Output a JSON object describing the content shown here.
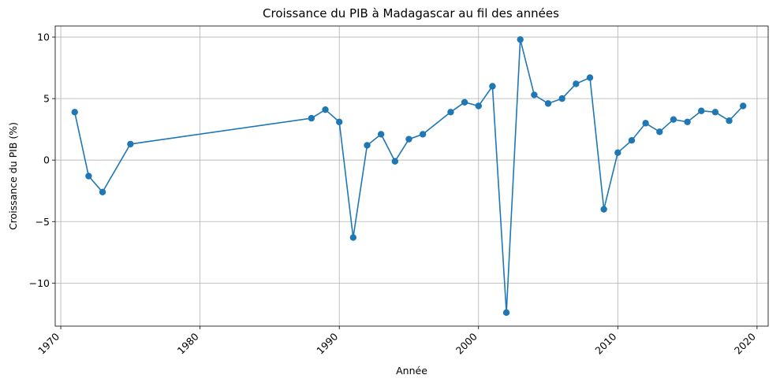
{
  "chart_data": {
    "type": "line",
    "title": "Croissance du PIB à Madagascar au fil des années",
    "xlabel": "Année",
    "ylabel": "Croissance du PIB (%)",
    "xlim": [
      1969.6,
      2020.8
    ],
    "ylim": [
      -13.5,
      10.9
    ],
    "xticks": [
      1970,
      1980,
      1990,
      2000,
      2010,
      2020
    ],
    "yticks": [
      -10,
      -5,
      0,
      5,
      10
    ],
    "xtick_labels": [
      "1970",
      "1980",
      "1990",
      "2000",
      "2010",
      "2020"
    ],
    "ytick_labels": [
      "−10",
      "−5",
      "0",
      "5",
      "10"
    ],
    "grid": true,
    "color": "#1f77b4",
    "series": [
      {
        "x": [
          1971,
          1972,
          1973,
          1975,
          1988,
          1989,
          1990,
          1991,
          1992,
          1993,
          1994,
          1995,
          1996,
          1998,
          1999,
          2000,
          2001,
          2002,
          2003,
          2004,
          2005,
          2006,
          2007,
          2008,
          2009,
          2010,
          2011,
          2012,
          2013,
          2014,
          2015,
          2016,
          2017,
          2018,
          2019
        ],
        "values": [
          3.9,
          -1.3,
          -2.6,
          1.3,
          3.4,
          4.1,
          3.1,
          -6.3,
          1.2,
          2.1,
          -0.1,
          1.7,
          2.1,
          3.9,
          4.7,
          4.4,
          6.0,
          -12.4,
          9.8,
          5.3,
          4.6,
          5.0,
          6.2,
          6.7,
          -4.0,
          0.6,
          1.6,
          3.0,
          2.3,
          3.3,
          3.1,
          4.0,
          3.9,
          3.2,
          4.4
        ]
      }
    ]
  }
}
